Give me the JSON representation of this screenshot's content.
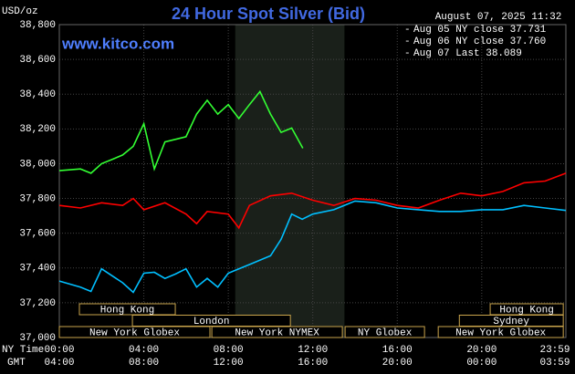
{
  "chart_data": {
    "type": "line",
    "title": "24 Hour Spot Silver (Bid)",
    "site": "www.kitco.com",
    "unit": "USD/oz",
    "timestamp": "August 07, 2025 11:32",
    "x_row_labels": [
      "NY Time",
      "GMT"
    ],
    "xlim": [
      0,
      23.983
    ],
    "ylim": [
      37000,
      38800
    ],
    "grid": true,
    "shaded_hours": [
      8.33,
      13.5
    ],
    "xticks": [
      {
        "value": 0,
        "label": "00:00"
      },
      {
        "value": 4,
        "label": "04:00"
      },
      {
        "value": 8,
        "label": "08:00"
      },
      {
        "value": 12,
        "label": "12:00"
      },
      {
        "value": 16,
        "label": "16:00"
      },
      {
        "value": 20,
        "label": "20:00"
      },
      {
        "value": 23.983,
        "label": "23:59"
      }
    ],
    "gmt_ticks": [
      {
        "value": 0,
        "label": "04:00"
      },
      {
        "value": 4,
        "label": "08:00"
      },
      {
        "value": 8,
        "label": "12:00"
      },
      {
        "value": 12,
        "label": "16:00"
      },
      {
        "value": 16,
        "label": "20:00"
      },
      {
        "value": 20,
        "label": "00:00"
      },
      {
        "value": 23.983,
        "label": "03:59"
      }
    ],
    "yticks": [
      {
        "value": 37000,
        "label": "37,000"
      },
      {
        "value": 37200,
        "label": "37,200"
      },
      {
        "value": 37400,
        "label": "37,400"
      },
      {
        "value": 37600,
        "label": "37,600"
      },
      {
        "value": 37800,
        "label": "37,800"
      },
      {
        "value": 38000,
        "label": "38,000"
      },
      {
        "value": 38200,
        "label": "38,200"
      },
      {
        "value": 38400,
        "label": "38,400"
      },
      {
        "value": 38600,
        "label": "38,600"
      },
      {
        "value": 38800,
        "label": "38,800"
      }
    ],
    "series": [
      {
        "name": "Aug 05 NY close 37.731",
        "color": "#00bfff",
        "x": [
          0,
          1,
          1.5,
          2,
          3,
          3.5,
          4,
          4.5,
          5,
          5.5,
          6,
          6.5,
          7,
          7.5,
          8,
          9,
          10,
          10.5,
          11,
          11.5,
          12,
          13,
          14,
          15,
          16,
          17,
          18,
          19,
          20,
          21,
          22,
          23,
          23.983
        ],
        "values": [
          37325,
          37290,
          37265,
          37395,
          37315,
          37260,
          37370,
          37375,
          37340,
          37365,
          37395,
          37290,
          37340,
          37290,
          37370,
          37420,
          37470,
          37565,
          37710,
          37680,
          37710,
          37735,
          37785,
          37775,
          37745,
          37735,
          37725,
          37725,
          37735,
          37735,
          37760,
          37745,
          37731
        ]
      },
      {
        "name": "Aug 06 NY close 37.760",
        "color": "#ff0000",
        "x": [
          0,
          1,
          2,
          3,
          3.5,
          4,
          5,
          6,
          6.5,
          7,
          8,
          8.5,
          9,
          10,
          11,
          12,
          13,
          14,
          15,
          16,
          17,
          18,
          19,
          20,
          21,
          22,
          23,
          23.983
        ],
        "values": [
          37760,
          37745,
          37775,
          37760,
          37800,
          37735,
          37775,
          37710,
          37655,
          37725,
          37710,
          37630,
          37760,
          37815,
          37830,
          37790,
          37760,
          37800,
          37790,
          37760,
          37745,
          37790,
          37830,
          37815,
          37840,
          37890,
          37900,
          37945
        ]
      },
      {
        "name": "Aug 07 Last 38.089",
        "color": "#33ff33",
        "x": [
          0,
          1,
          1.5,
          2,
          2.5,
          3,
          3.5,
          4,
          4.5,
          5,
          6,
          6.5,
          7,
          7.5,
          8,
          8.5,
          9,
          9.5,
          10,
          10.5,
          11,
          11.53
        ],
        "values": [
          37960,
          37970,
          37945,
          38000,
          38025,
          38050,
          38100,
          38230,
          37970,
          38125,
          38155,
          38285,
          38365,
          38285,
          38340,
          38260,
          38340,
          38415,
          38285,
          38180,
          38205,
          38089
        ]
      }
    ],
    "sessions": [
      {
        "name": "Hong Kong",
        "row": 1,
        "start": 0.95,
        "end": 5.49
      },
      {
        "name": "London",
        "row": 2,
        "start": 3.46,
        "end": 10.94
      },
      {
        "name": "New York Globex",
        "row": 3,
        "start": 0,
        "end": 7.13
      },
      {
        "name": "New York NYMEX",
        "row": 3,
        "start": 7.22,
        "end": 13.4
      },
      {
        "name": "NY Globex",
        "row": 3,
        "start": 13.53,
        "end": 17.29
      },
      {
        "name": "Hong Kong",
        "row": 1,
        "start": 20.4,
        "end": 23.86
      },
      {
        "name": "Sydney",
        "row": 2,
        "start": 18.94,
        "end": 23.86
      },
      {
        "name": "New York Globex",
        "row": 3,
        "start": 17.94,
        "end": 23.86
      }
    ]
  }
}
